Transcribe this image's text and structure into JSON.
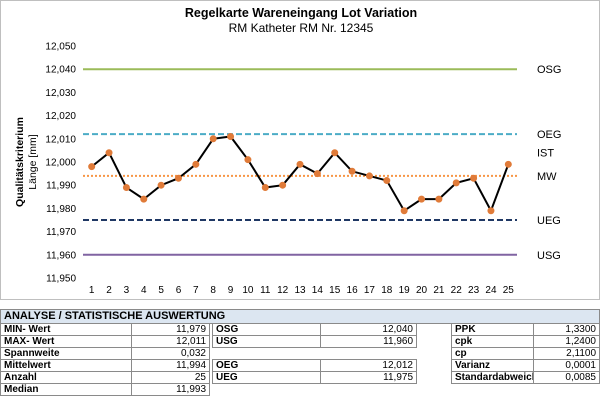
{
  "chart_data": {
    "type": "line",
    "title": "Regelkarte Wareneingang Lot Variation",
    "subtitle": "RM Katheter  RM Nr. 12345",
    "ylabel_line1": "Qualitätskriterium",
    "ylabel_line2": "Länge [mm]",
    "xlabel": "",
    "x": [
      "1",
      "2",
      "3",
      "4",
      "5",
      "6",
      "7",
      "8",
      "9",
      "10",
      "11",
      "12",
      "13",
      "14",
      "15",
      "16",
      "17",
      "18",
      "19",
      "20",
      "21",
      "22",
      "23",
      "24",
      "25"
    ],
    "values": [
      11.998,
      12.004,
      11.989,
      11.984,
      11.99,
      11.993,
      11.999,
      12.01,
      12.011,
      12.001,
      11.989,
      11.99,
      11.999,
      11.995,
      12.004,
      11.996,
      11.994,
      11.992,
      11.979,
      11.984,
      11.984,
      11.991,
      11.993,
      11.979,
      11.999
    ],
    "ylim": [
      11.95,
      12.05
    ],
    "yticks": [
      "12,050",
      "12,040",
      "12,030",
      "12,020",
      "12,010",
      "12,000",
      "11,990",
      "11,980",
      "11,970",
      "11,960",
      "11,950"
    ],
    "reference_lines": [
      {
        "label": "OSG",
        "value": 12.04,
        "color": "#9bbb59",
        "style": "solid"
      },
      {
        "label": "OEG",
        "value": 12.012,
        "color": "#4bacc6",
        "style": "dashed"
      },
      {
        "label": "IST",
        "value": 12.004,
        "color": "none",
        "style": "none"
      },
      {
        "label": "MW",
        "value": 11.994,
        "color": "#f79646",
        "style": "dotted"
      },
      {
        "label": "UEG",
        "value": 11.975,
        "color": "#1f3864",
        "style": "dashed"
      },
      {
        "label": "USG",
        "value": 11.96,
        "color": "#8064a2",
        "style": "solid"
      }
    ],
    "series_color": "#000000",
    "marker_color": "#e07b39",
    "grid": false
  },
  "stats": {
    "header": "ANALYSE / STATISTISCHE AUSWERTUNG",
    "rows": [
      [
        {
          "l": "MIN- Wert",
          "v": "11,979"
        },
        {
          "l": "OSG",
          "v": "12,040"
        },
        {
          "l": "PPK",
          "v": "1,3300"
        }
      ],
      [
        {
          "l": "MAX- Wert",
          "v": "12,011"
        },
        {
          "l": "USG",
          "v": "11,960"
        },
        {
          "l": "cpk",
          "v": "1,2400"
        }
      ],
      [
        {
          "l": "Spannweite",
          "v": "0,032"
        },
        {
          "l": "",
          "v": ""
        },
        {
          "l": "cp",
          "v": "2,1100"
        }
      ],
      [
        {
          "l": "Mittelwert",
          "v": "11,994"
        },
        {
          "l": "OEG",
          "v": "12,012"
        },
        {
          "l": "Varianz",
          "v": "0,0001"
        }
      ],
      [
        {
          "l": "Anzahl",
          "v": "25"
        },
        {
          "l": "UEG",
          "v": "11,975"
        },
        {
          "l": "Standardabweichung",
          "v": "0,0085"
        }
      ],
      [
        {
          "l": "Median",
          "v": "11,993"
        },
        {
          "l": "",
          "v": ""
        },
        {
          "l": "",
          "v": ""
        }
      ]
    ]
  }
}
